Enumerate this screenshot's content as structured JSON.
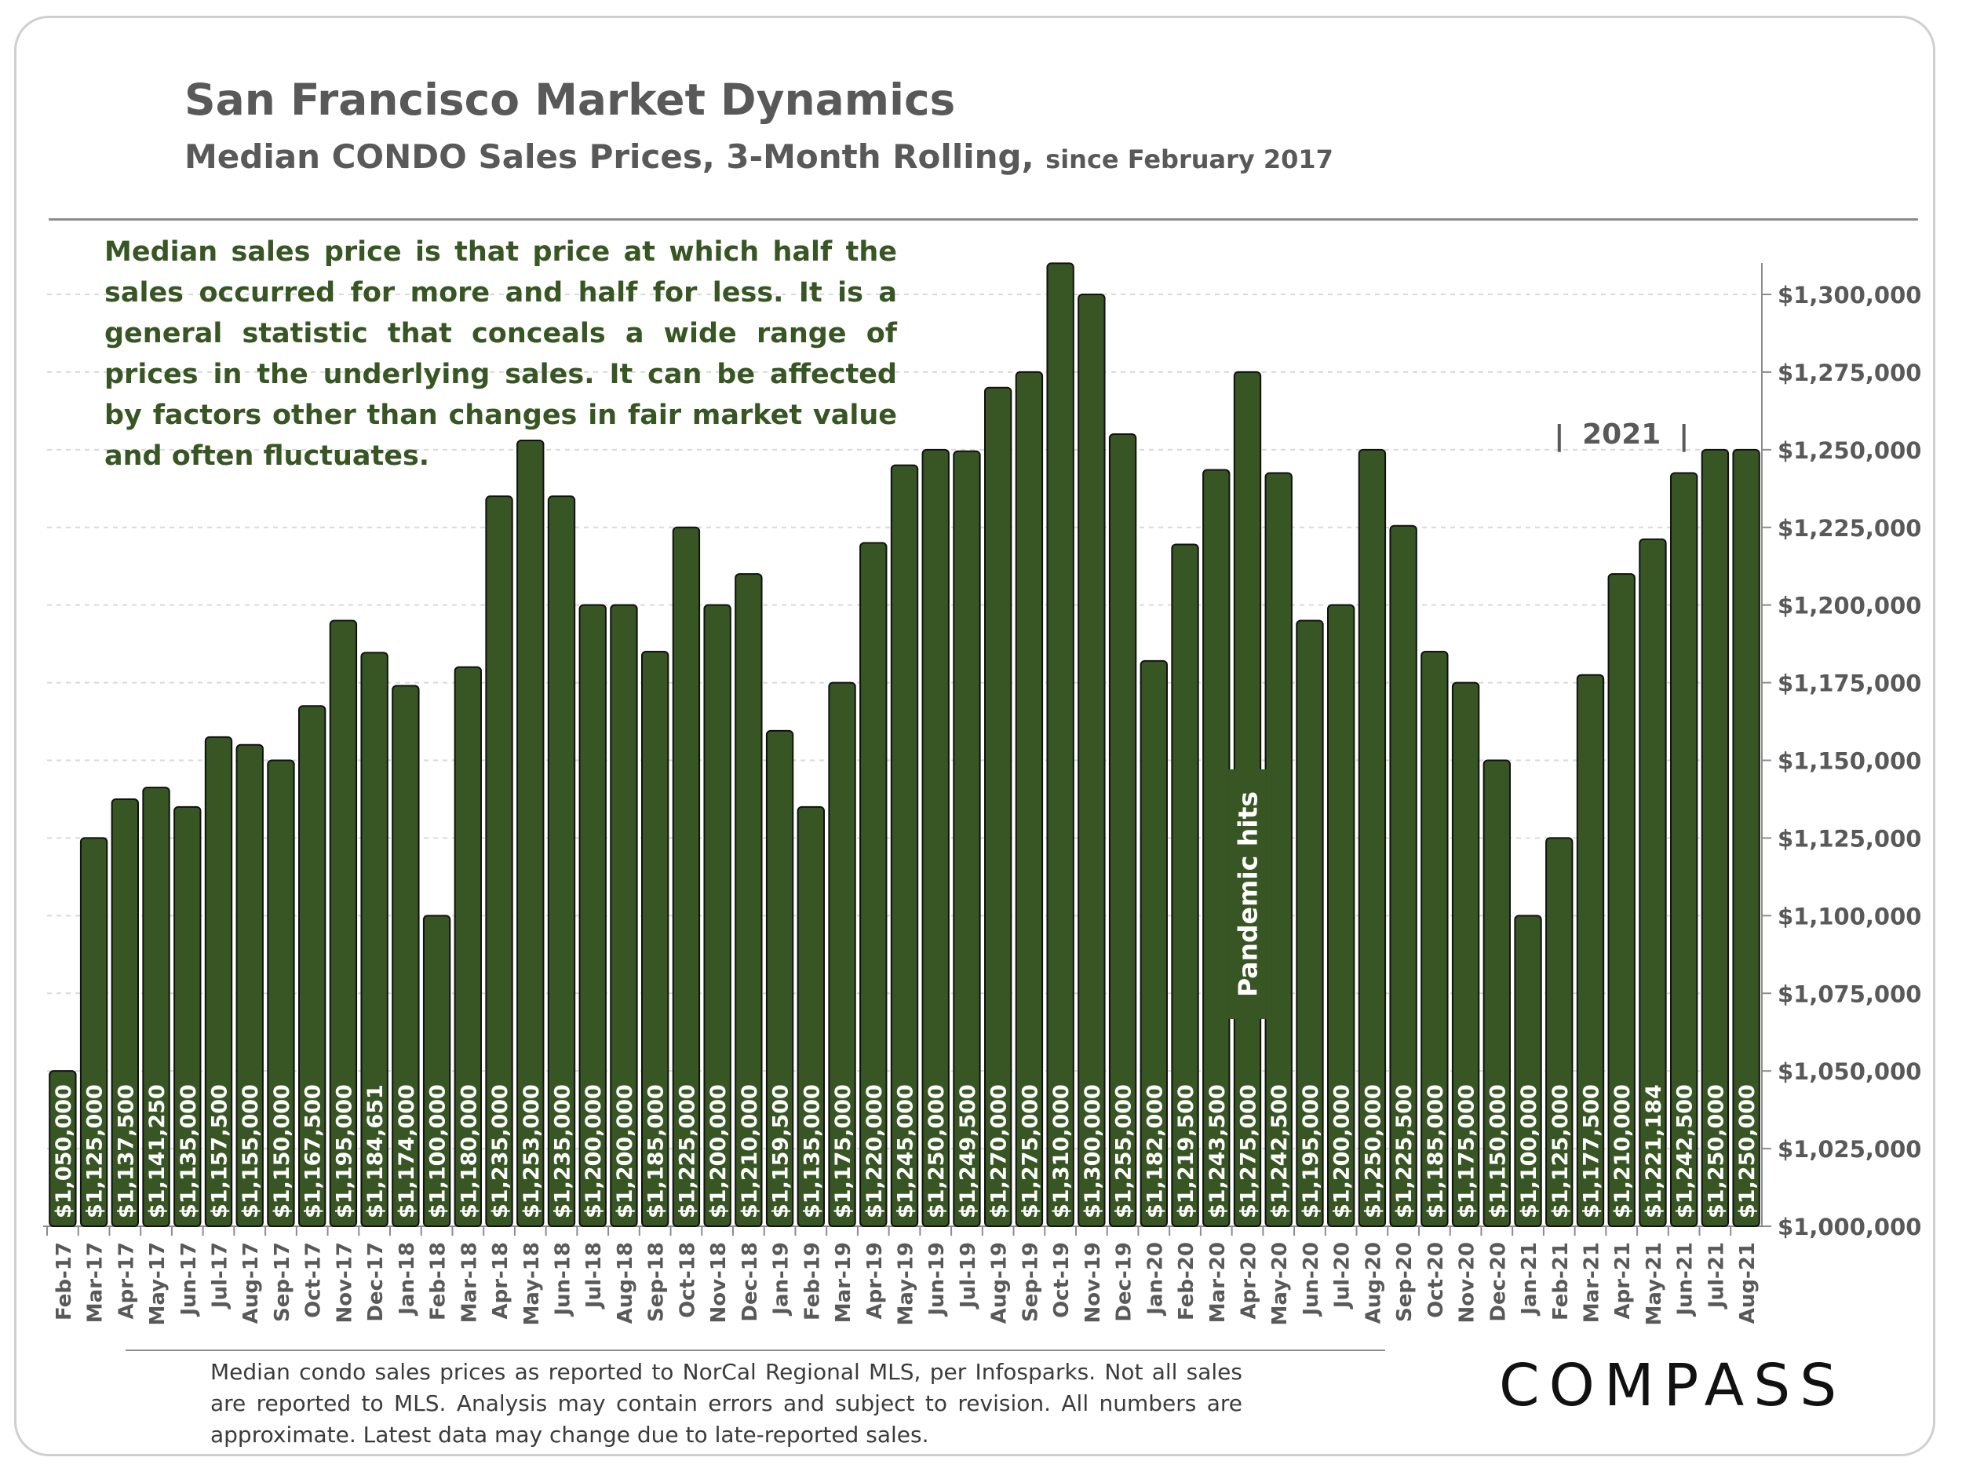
{
  "title": "San Francisco Market Dynamics",
  "subtitle_main": "Median CONDO Sales Prices, 3-Month Rolling,",
  "subtitle_small": "since February 2017",
  "note": "Median sales price is that price at which half the sales occurred for more and half for less. It is a general statistic that conceals a wide range of prices in the underlying sales. It can be affected by factors other than changes in fair market value and often fluctuates.",
  "footnote": "Median condo sales prices as reported to NorCal Regional MLS, per Infosparks. Not all sales are reported to MLS. Analysis may contain errors and subject to revision. All numbers are approximate. Latest data may change due to late-reported sales.",
  "logo": "COMPASS",
  "colors": {
    "bar": "#375623",
    "bar_border": "#111111",
    "grid": "#d9d9d9",
    "axis_text": "#595959"
  },
  "chart_data": {
    "type": "bar",
    "title": "San Francisco Market Dynamics",
    "ylim": [
      1000000,
      1320000
    ],
    "y_ticks": [
      1000000,
      1025000,
      1050000,
      1075000,
      1100000,
      1125000,
      1150000,
      1175000,
      1200000,
      1225000,
      1250000,
      1275000,
      1300000
    ],
    "y_tick_labels": [
      "$1,000,000",
      "$1,025,000",
      "$1,050,000",
      "$1,075,000",
      "$1,100,000",
      "$1,125,000",
      "$1,150,000",
      "$1,175,000",
      "$1,200,000",
      "$1,225,000",
      "$1,250,000",
      "$1,275,000",
      "$1,300,000"
    ],
    "y_axis_position": "right",
    "grid": true,
    "categories": [
      "Feb-17",
      "Mar-17",
      "Apr-17",
      "May-17",
      "Jun-17",
      "Jul-17",
      "Aug-17",
      "Sep-17",
      "Oct-17",
      "Nov-17",
      "Dec-17",
      "Jan-18",
      "Feb-18",
      "Mar-18",
      "Apr-18",
      "May-18",
      "Jun-18",
      "Jul-18",
      "Aug-18",
      "Sep-18",
      "Oct-18",
      "Nov-18",
      "Dec-18",
      "Jan-19",
      "Feb-19",
      "Mar-19",
      "Apr-19",
      "May-19",
      "Jun-19",
      "Jul-19",
      "Aug-19",
      "Sep-19",
      "Oct-19",
      "Nov-19",
      "Dec-19",
      "Jan-20",
      "Feb-20",
      "Mar-20",
      "Apr-20",
      "May-20",
      "Jun-20",
      "Jul-20",
      "Aug-20",
      "Sep-20",
      "Oct-20",
      "Nov-20",
      "Dec-20",
      "Jan-21",
      "Feb-21",
      "Mar-21",
      "Apr-21",
      "May-21",
      "Jun-21",
      "Jul-21",
      "Aug-21"
    ],
    "values": [
      1050000,
      1125000,
      1137500,
      1141250,
      1135000,
      1157500,
      1155000,
      1150000,
      1167500,
      1195000,
      1184651,
      1174000,
      1100000,
      1180000,
      1235000,
      1253000,
      1235000,
      1200000,
      1200000,
      1185000,
      1225000,
      1200000,
      1210000,
      1159500,
      1135000,
      1175000,
      1220000,
      1245000,
      1250000,
      1249500,
      1270000,
      1275000,
      1310000,
      1300000,
      1255000,
      1182000,
      1219500,
      1243500,
      1275000,
      1242500,
      1195000,
      1200000,
      1250000,
      1225500,
      1185000,
      1175000,
      1150000,
      1100000,
      1125000,
      1177500,
      1210000,
      1221184,
      1242500,
      1250000,
      1250000
    ],
    "value_labels": [
      "$1,050,000",
      "$1,125,000",
      "$1,137,500",
      "$1,141,250",
      "$1,135,000",
      "$1,157,500",
      "$1,155,000",
      "$1,150,000",
      "$1,167,500",
      "$1,195,000",
      "$1,184,651",
      "$1,174,000",
      "$1,100,000",
      "$1,180,000",
      "$1,235,000",
      "$1,253,000",
      "$1,235,000",
      "$1,200,000",
      "$1,200,000",
      "$1,185,000",
      "$1,225,000",
      "$1,200,000",
      "$1,210,000",
      "$1,159,500",
      "$1,135,000",
      "$1,175,000",
      "$1,220,000",
      "$1,245,000",
      "$1,250,000",
      "$1,249,500",
      "$1,270,000",
      "$1,275,000",
      "$1,310,000",
      "$1,300,000",
      "$1,255,000",
      "$1,182,000",
      "$1,219,500",
      "$1,243,500",
      "$1,275,000",
      "$1,242,500",
      "$1,195,000",
      "$1,200,000",
      "$1,250,000",
      "$1,225,500",
      "$1,185,000",
      "$1,175,000",
      "$1,150,000",
      "$1,100,000",
      "$1,125,000",
      "$1,177,500",
      "$1,210,000",
      "$1,221,184",
      "$1,242,500",
      "$1,250,000",
      "$1,250,000"
    ],
    "annotations": [
      {
        "text": "Pandemic hits",
        "category": "Apr-20"
      },
      {
        "text": "2021",
        "category_range": [
          "Feb-21",
          "Jun-21"
        ],
        "marker": "|"
      }
    ]
  }
}
